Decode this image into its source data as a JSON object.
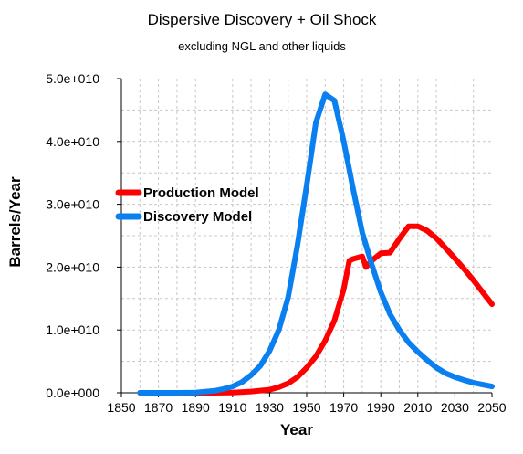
{
  "chart_data": {
    "type": "line",
    "title": "Dispersive Discovery + Oil Shock",
    "subtitle": "excluding NGL and other liquids",
    "xlabel": "Year",
    "ylabel": "Barrels/Year",
    "xlim": [
      1850,
      2050
    ],
    "ylim": [
      0,
      50000000000
    ],
    "x_ticks": [
      "1850",
      "1870",
      "1890",
      "1910",
      "1930",
      "1950",
      "1970",
      "1990",
      "2010",
      "2030",
      "2050"
    ],
    "y_ticks": [
      "0.0e+000",
      "1.0e+010",
      "2.0e+010",
      "3.0e+010",
      "4.0e+010",
      "5.0e+010"
    ],
    "y_tick_values": [
      0,
      10000000000,
      20000000000,
      30000000000,
      40000000000,
      50000000000
    ],
    "grid": true,
    "legend_position": "left-middle",
    "series": [
      {
        "name": "Production Model",
        "color": "#ff0000",
        "points": [
          [
            1860,
            0
          ],
          [
            1880,
            0
          ],
          [
            1900,
            0
          ],
          [
            1910,
            50000000
          ],
          [
            1920,
            200000000
          ],
          [
            1930,
            500000000
          ],
          [
            1935,
            900000000
          ],
          [
            1940,
            1500000000
          ],
          [
            1945,
            2500000000
          ],
          [
            1950,
            4000000000
          ],
          [
            1955,
            5800000000
          ],
          [
            1960,
            8300000000
          ],
          [
            1965,
            11500000000
          ],
          [
            1970,
            16500000000
          ],
          [
            1973,
            21000000000
          ],
          [
            1975,
            21300000000
          ],
          [
            1980,
            21700000000
          ],
          [
            1982,
            20000000000
          ],
          [
            1985,
            21000000000
          ],
          [
            1990,
            22200000000
          ],
          [
            1995,
            22300000000
          ],
          [
            2000,
            24500000000
          ],
          [
            2005,
            26500000000
          ],
          [
            2010,
            26500000000
          ],
          [
            2015,
            25800000000
          ],
          [
            2020,
            24600000000
          ],
          [
            2025,
            23000000000
          ],
          [
            2030,
            21400000000
          ],
          [
            2035,
            19700000000
          ],
          [
            2040,
            17900000000
          ],
          [
            2045,
            16000000000
          ],
          [
            2050,
            14100000000
          ]
        ]
      },
      {
        "name": "Discovery Model",
        "color": "#0a7ff0",
        "points": [
          [
            1860,
            0
          ],
          [
            1880,
            0
          ],
          [
            1890,
            50000000
          ],
          [
            1900,
            300000000
          ],
          [
            1905,
            600000000
          ],
          [
            1910,
            1000000000
          ],
          [
            1915,
            1700000000
          ],
          [
            1920,
            2800000000
          ],
          [
            1925,
            4300000000
          ],
          [
            1930,
            6700000000
          ],
          [
            1935,
            10000000000
          ],
          [
            1940,
            15200000000
          ],
          [
            1945,
            23500000000
          ],
          [
            1950,
            33000000000
          ],
          [
            1955,
            43000000000
          ],
          [
            1960,
            47500000000
          ],
          [
            1965,
            46500000000
          ],
          [
            1970,
            40000000000
          ],
          [
            1975,
            32500000000
          ],
          [
            1980,
            25500000000
          ],
          [
            1985,
            20500000000
          ],
          [
            1990,
            16000000000
          ],
          [
            1995,
            12500000000
          ],
          [
            2000,
            10000000000
          ],
          [
            2005,
            8000000000
          ],
          [
            2010,
            6500000000
          ],
          [
            2015,
            5200000000
          ],
          [
            2020,
            4000000000
          ],
          [
            2025,
            3100000000
          ],
          [
            2030,
            2500000000
          ],
          [
            2035,
            2000000000
          ],
          [
            2040,
            1600000000
          ],
          [
            2045,
            1300000000
          ],
          [
            2050,
            1000000000
          ]
        ]
      }
    ]
  }
}
